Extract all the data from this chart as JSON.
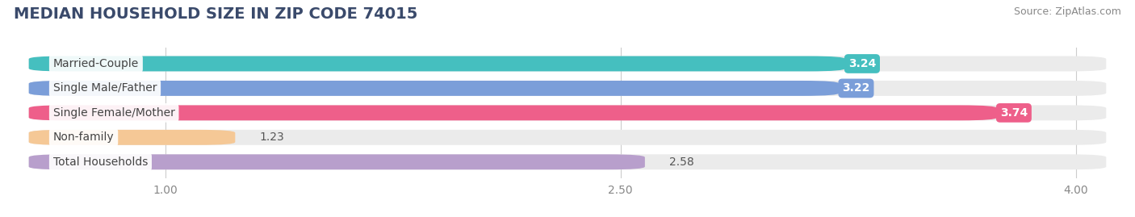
{
  "title": "MEDIAN HOUSEHOLD SIZE IN ZIP CODE 74015",
  "source": "Source: ZipAtlas.com",
  "categories": [
    "Married-Couple",
    "Single Male/Father",
    "Single Female/Mother",
    "Non-family",
    "Total Households"
  ],
  "values": [
    3.24,
    3.22,
    3.74,
    1.23,
    2.58
  ],
  "bar_colors": [
    "#45BFBF",
    "#7B9ED9",
    "#EE5F8A",
    "#F5C896",
    "#B89FCC"
  ],
  "value_label_colors": [
    "#45BFBF",
    "#7B9ED9",
    "#EE5F8A",
    "#555555",
    "#555555"
  ],
  "bar_bg_color": "#EBEBEB",
  "xlim_min": 0.5,
  "xlim_max": 4.15,
  "xticks": [
    1.0,
    2.5,
    4.0
  ],
  "xtick_labels": [
    "1.00",
    "2.50",
    "4.00"
  ],
  "title_fontsize": 14,
  "source_fontsize": 9,
  "label_fontsize": 10,
  "value_fontsize": 10,
  "tick_fontsize": 10,
  "background_color": "#FFFFFF",
  "bar_height": 0.62,
  "title_color": "#3A4A6B",
  "source_color": "#888888",
  "label_text_color": "#444444",
  "tick_color": "#888888",
  "grid_color": "#CCCCCC"
}
